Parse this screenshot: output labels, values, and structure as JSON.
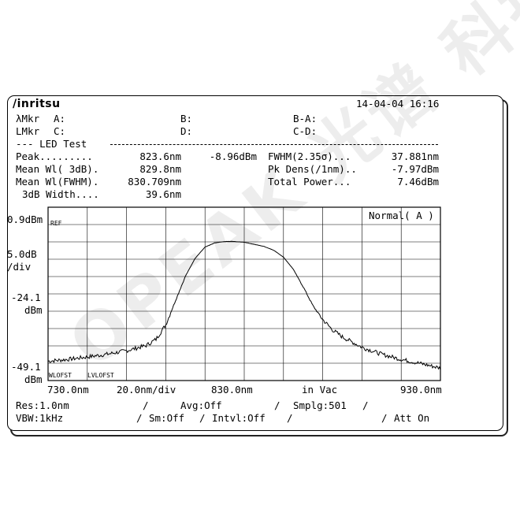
{
  "header": {
    "brand": "/inritsu",
    "datetime": "14-04-04 16:16"
  },
  "markers": {
    "lambda_label": "λMkr",
    "level_label": "LMkr",
    "a": "A:",
    "b": "B:",
    "c": "C:",
    "d": "D:",
    "ba": "B-A:",
    "cd": "C-D:"
  },
  "section": {
    "title": "--- LED Test"
  },
  "results": {
    "peak_label": "Peak.........",
    "peak_wl": "823.6nm",
    "peak_level": "-8.96dBm",
    "fwhm_sigma_label": "FWHM(2.35σ)...",
    "fwhm_sigma_value": "37.881nm",
    "mean_3db_label": "Mean Wl( 3dB).",
    "mean_3db_value": "829.8nm",
    "pk_dens_label": "Pk Dens(/1nm)..",
    "pk_dens_value": "-7.97dBm",
    "mean_fwhm_label": "Mean Wl(FWHM).",
    "mean_fwhm_value": "830.709nm",
    "total_power_label": "Total Power...",
    "total_power_value": "7.46dBm",
    "width_3db_label": "3dB Width....",
    "width_3db_value": "39.6nm"
  },
  "plot": {
    "ref_level": "0.9dBm",
    "ref_tag": "REF",
    "scale_top": "5.0dB",
    "scale_bottom": "/div",
    "mid_level": "-24.1",
    "mid_unit": "dBm",
    "low_level": "-49.1",
    "low_unit": "dBm",
    "mode": "Normal( A )",
    "wl_offset_tag": "WLOFST",
    "lvl_offset_tag": "LVLOFST",
    "x_start": "730.0nm",
    "x_div": "20.0nm/div",
    "x_center": "830.0nm",
    "x_medium": "in Vac",
    "x_stop": "930.0nm"
  },
  "footer": {
    "res": "Res:1.0nm",
    "avg": "Avg:Off",
    "smplg": "Smplg:501",
    "vbw": "VBW:1kHz",
    "sm": "Sm:Off",
    "intvl": "Intvl:Off",
    "att": "Att On"
  },
  "watermark_text": "OPEAK 光谱 科技",
  "chart_data": {
    "type": "line",
    "xlim": [
      730,
      930
    ],
    "ylim": [
      -49.1,
      0.9
    ],
    "x_units": "nm",
    "y_units": "dBm",
    "series": [
      {
        "x": [
          730,
          740,
          750,
          760,
          770,
          780,
          785,
          790,
          795,
          800,
          805,
          810,
          815,
          820,
          823.6,
          830,
          835,
          840,
          845,
          850,
          855,
          860,
          865,
          870,
          875,
          880,
          890,
          900,
          910,
          920,
          930
        ],
        "y": [
          -43.5,
          -43,
          -42.3,
          -41.5,
          -40.5,
          -39,
          -37.2,
          -33,
          -26,
          -19,
          -13.8,
          -10.6,
          -9.4,
          -9.0,
          -8.96,
          -9.2,
          -9.8,
          -10.4,
          -11.5,
          -13.5,
          -17,
          -22,
          -27.5,
          -31.5,
          -34.5,
          -36.5,
          -39.5,
          -41.5,
          -43,
          -44.2,
          -45.5
        ]
      }
    ]
  }
}
